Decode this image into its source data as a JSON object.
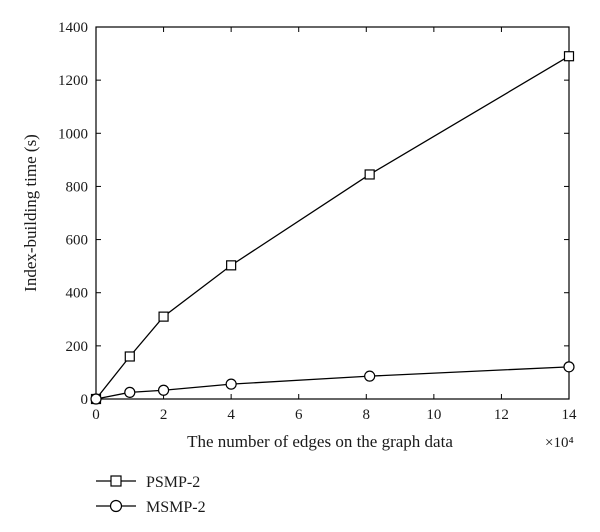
{
  "chart_data": {
    "type": "line",
    "xlabel": "The number of edges on the graph data",
    "ylabel": "Index-building time (s)",
    "x_multiplier": "×10⁴",
    "xlim": [
      0,
      14
    ],
    "ylim": [
      0,
      1400
    ],
    "xticks": [
      "0",
      "2",
      "4",
      "6",
      "8",
      "10",
      "12",
      "14"
    ],
    "yticks": [
      "0",
      "200",
      "400",
      "600",
      "800",
      "1000",
      "1200",
      "1400"
    ],
    "grid": false,
    "legend_position": "below",
    "series": [
      {
        "name": "PSMP-2",
        "marker": "square",
        "x": [
          0,
          1,
          2,
          4,
          8.1,
          14
        ],
        "y": [
          0,
          160,
          310,
          503,
          845,
          1290
        ]
      },
      {
        "name": "MSMP-2",
        "marker": "circle",
        "x": [
          0,
          1,
          2,
          4,
          8.1,
          14
        ],
        "y": [
          0,
          25,
          33,
          56,
          86,
          121
        ]
      }
    ]
  }
}
